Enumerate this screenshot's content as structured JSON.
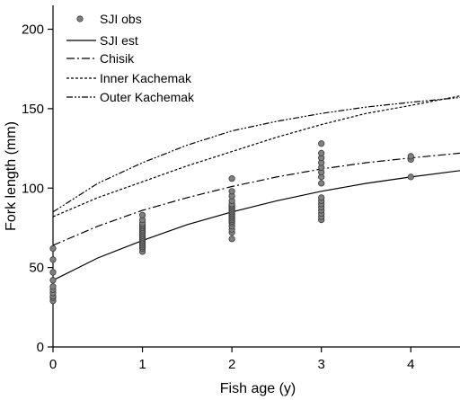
{
  "chart_data": {
    "type": "scatter",
    "xlabel": "Fish age (y)",
    "ylabel": "Fork length (mm)",
    "xlim": [
      0,
      4.55
    ],
    "ylim": [
      0,
      215
    ],
    "xticks": [
      0,
      1,
      2,
      3,
      4
    ],
    "yticks": [
      0,
      50,
      100,
      150,
      200
    ],
    "legend_position": "top-left",
    "observations": {
      "name": "SJI obs",
      "color": "#808080",
      "points": [
        [
          0,
          29
        ],
        [
          0,
          31
        ],
        [
          0,
          32
        ],
        [
          0,
          34
        ],
        [
          0,
          36
        ],
        [
          0,
          38
        ],
        [
          0,
          42
        ],
        [
          0,
          47
        ],
        [
          0,
          55
        ],
        [
          0,
          62
        ],
        [
          1,
          60
        ],
        [
          1,
          62
        ],
        [
          1,
          63
        ],
        [
          1,
          64
        ],
        [
          1,
          65
        ],
        [
          1,
          66
        ],
        [
          1,
          67
        ],
        [
          1,
          68
        ],
        [
          1,
          69
        ],
        [
          1,
          70
        ],
        [
          1,
          71
        ],
        [
          1,
          72
        ],
        [
          1,
          73
        ],
        [
          1,
          74
        ],
        [
          1,
          75
        ],
        [
          1,
          76
        ],
        [
          1,
          77
        ],
        [
          1,
          78
        ],
        [
          1,
          80
        ],
        [
          1,
          83
        ],
        [
          2,
          68
        ],
        [
          2,
          72
        ],
        [
          2,
          74
        ],
        [
          2,
          76
        ],
        [
          2,
          78
        ],
        [
          2,
          79
        ],
        [
          2,
          80
        ],
        [
          2,
          81
        ],
        [
          2,
          82
        ],
        [
          2,
          83
        ],
        [
          2,
          84
        ],
        [
          2,
          85
        ],
        [
          2,
          86
        ],
        [
          2,
          87
        ],
        [
          2,
          88
        ],
        [
          2,
          89
        ],
        [
          2,
          90
        ],
        [
          2,
          92
        ],
        [
          2,
          95
        ],
        [
          2,
          98
        ],
        [
          2,
          106
        ],
        [
          3,
          80
        ],
        [
          3,
          82
        ],
        [
          3,
          84
        ],
        [
          3,
          86
        ],
        [
          3,
          88
        ],
        [
          3,
          90
        ],
        [
          3,
          92
        ],
        [
          3,
          94
        ],
        [
          3,
          103
        ],
        [
          3,
          107
        ],
        [
          3,
          110
        ],
        [
          3,
          113
        ],
        [
          3,
          116
        ],
        [
          3,
          119
        ],
        [
          3,
          122
        ],
        [
          3,
          128
        ],
        [
          4,
          107
        ],
        [
          4,
          118
        ],
        [
          4,
          120
        ]
      ]
    },
    "series": [
      {
        "name": "SJI est",
        "style": "solid",
        "x": [
          0,
          0.5,
          1,
          1.5,
          2,
          2.5,
          3,
          3.5,
          4,
          4.55
        ],
        "values": [
          42,
          56,
          67,
          77,
          85,
          92,
          98,
          103,
          107,
          111
        ]
      },
      {
        "name": "Chisik",
        "style": "dashdot",
        "x": [
          0,
          0.5,
          1,
          1.5,
          2,
          2.5,
          3,
          3.5,
          4,
          4.55
        ],
        "values": [
          64,
          76,
          86,
          94,
          101,
          107,
          112,
          116,
          119,
          122
        ]
      },
      {
        "name": "Inner Kachemak",
        "style": "dotted",
        "x": [
          0,
          0.5,
          1,
          1.5,
          2,
          2.5,
          3,
          3.5,
          4,
          4.55
        ],
        "values": [
          82,
          94,
          104,
          114,
          123,
          132,
          140,
          147,
          152,
          158
        ]
      },
      {
        "name": "Outer Kachemak",
        "style": "dashdotdot",
        "x": [
          0,
          0.5,
          1,
          1.5,
          2,
          2.5,
          3,
          3.5,
          4,
          4.55
        ],
        "values": [
          85,
          103,
          116,
          127,
          136,
          142,
          147,
          151,
          154,
          157
        ]
      }
    ]
  }
}
